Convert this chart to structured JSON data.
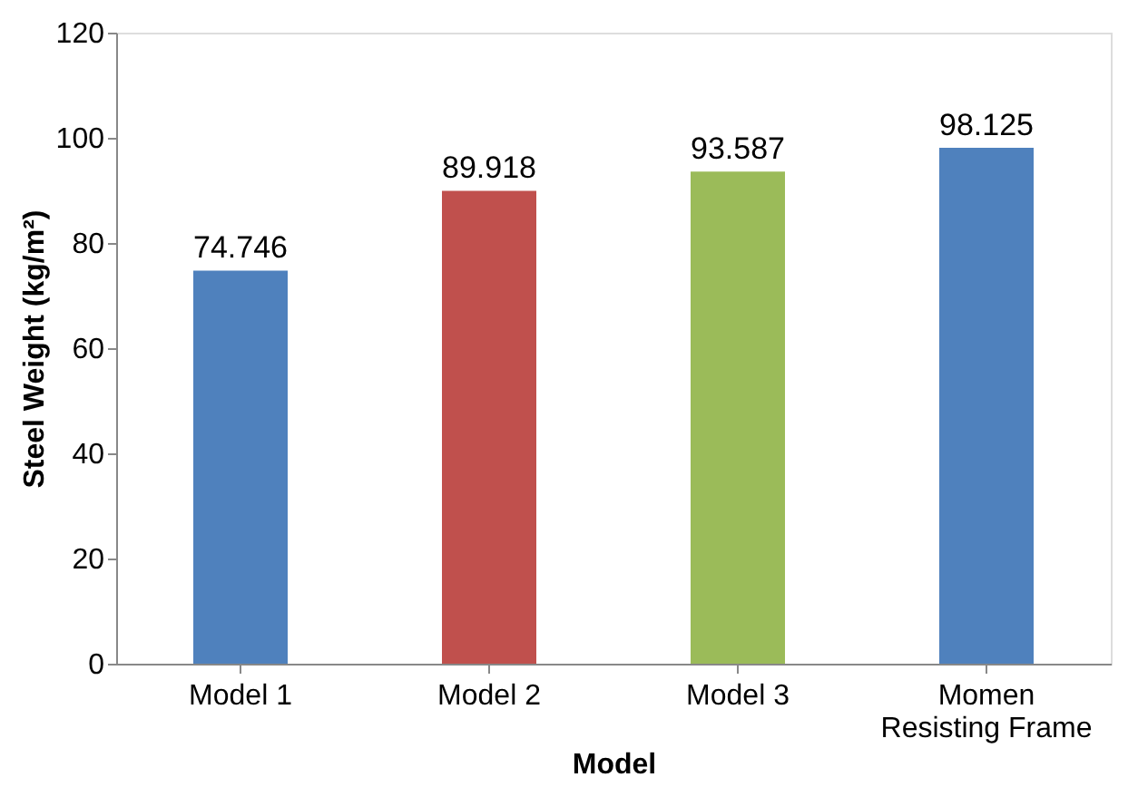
{
  "chart_data": {
    "type": "bar",
    "categories": [
      "Model 1",
      "Model 2",
      "Model 3",
      "Momen\nResisting Frame"
    ],
    "values": [
      74.746,
      89.918,
      93.587,
      98.125
    ],
    "colors": [
      "#4f81bd",
      "#c0504d",
      "#9bbb59",
      "#4f81bd"
    ],
    "xlabel": "Model",
    "ylabel": "Steel Weight (kg/m²)",
    "ylim": [
      0,
      120
    ],
    "yticks": [
      0,
      20,
      40,
      60,
      80,
      100,
      120
    ],
    "data_labels": true,
    "grid": false,
    "legend": false
  }
}
